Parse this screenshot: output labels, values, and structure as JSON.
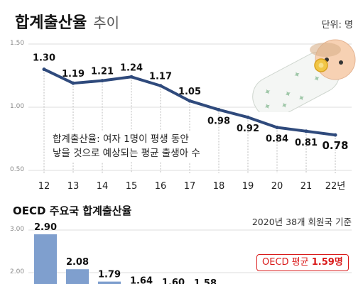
{
  "header": {
    "title_bold": "합계출산율",
    "title_rest": "추이",
    "unit": "단위: 명"
  },
  "note": {
    "line1": "합계출산율: 여자 1명이 평생 동안",
    "line2": "낳을 것으로 예상되는 평균 출생아 수"
  },
  "section2": {
    "title": "OECD 주요국 합계출산율",
    "subtitle": "2020년 38개 회원국 기준",
    "avg_badge_text": "OECD 평균",
    "avg_badge_value": "1.59명"
  },
  "colors": {
    "line": "#2f4a7c",
    "bar": "#7f9fce",
    "accent": "#d91a1a"
  },
  "chart_data": [
    {
      "type": "line",
      "x": [
        "12",
        "13",
        "14",
        "15",
        "16",
        "17",
        "18",
        "19",
        "20",
        "21",
        "22년"
      ],
      "values": [
        1.3,
        1.19,
        1.21,
        1.24,
        1.17,
        1.05,
        0.98,
        0.92,
        0.84,
        0.81,
        0.78
      ],
      "labels": [
        "1.30",
        "1.19",
        "1.21",
        "1.24",
        "1.17",
        "1.05",
        "0.98",
        "0.92",
        "0.84",
        "0.81",
        "0.78"
      ],
      "yticks": [
        "1.50",
        "1.00",
        "0.50"
      ],
      "ylim": [
        0.5,
        1.5
      ]
    },
    {
      "type": "bar",
      "values": [
        2.9,
        2.08,
        1.79,
        1.64,
        1.6,
        1.58
      ],
      "labels": [
        "2.90",
        "2.08",
        "1.79",
        "1.64",
        "1.60",
        "1.58"
      ],
      "yticks": [
        "3.00",
        "2.00"
      ],
      "ylim": [
        0,
        3.0
      ]
    }
  ]
}
